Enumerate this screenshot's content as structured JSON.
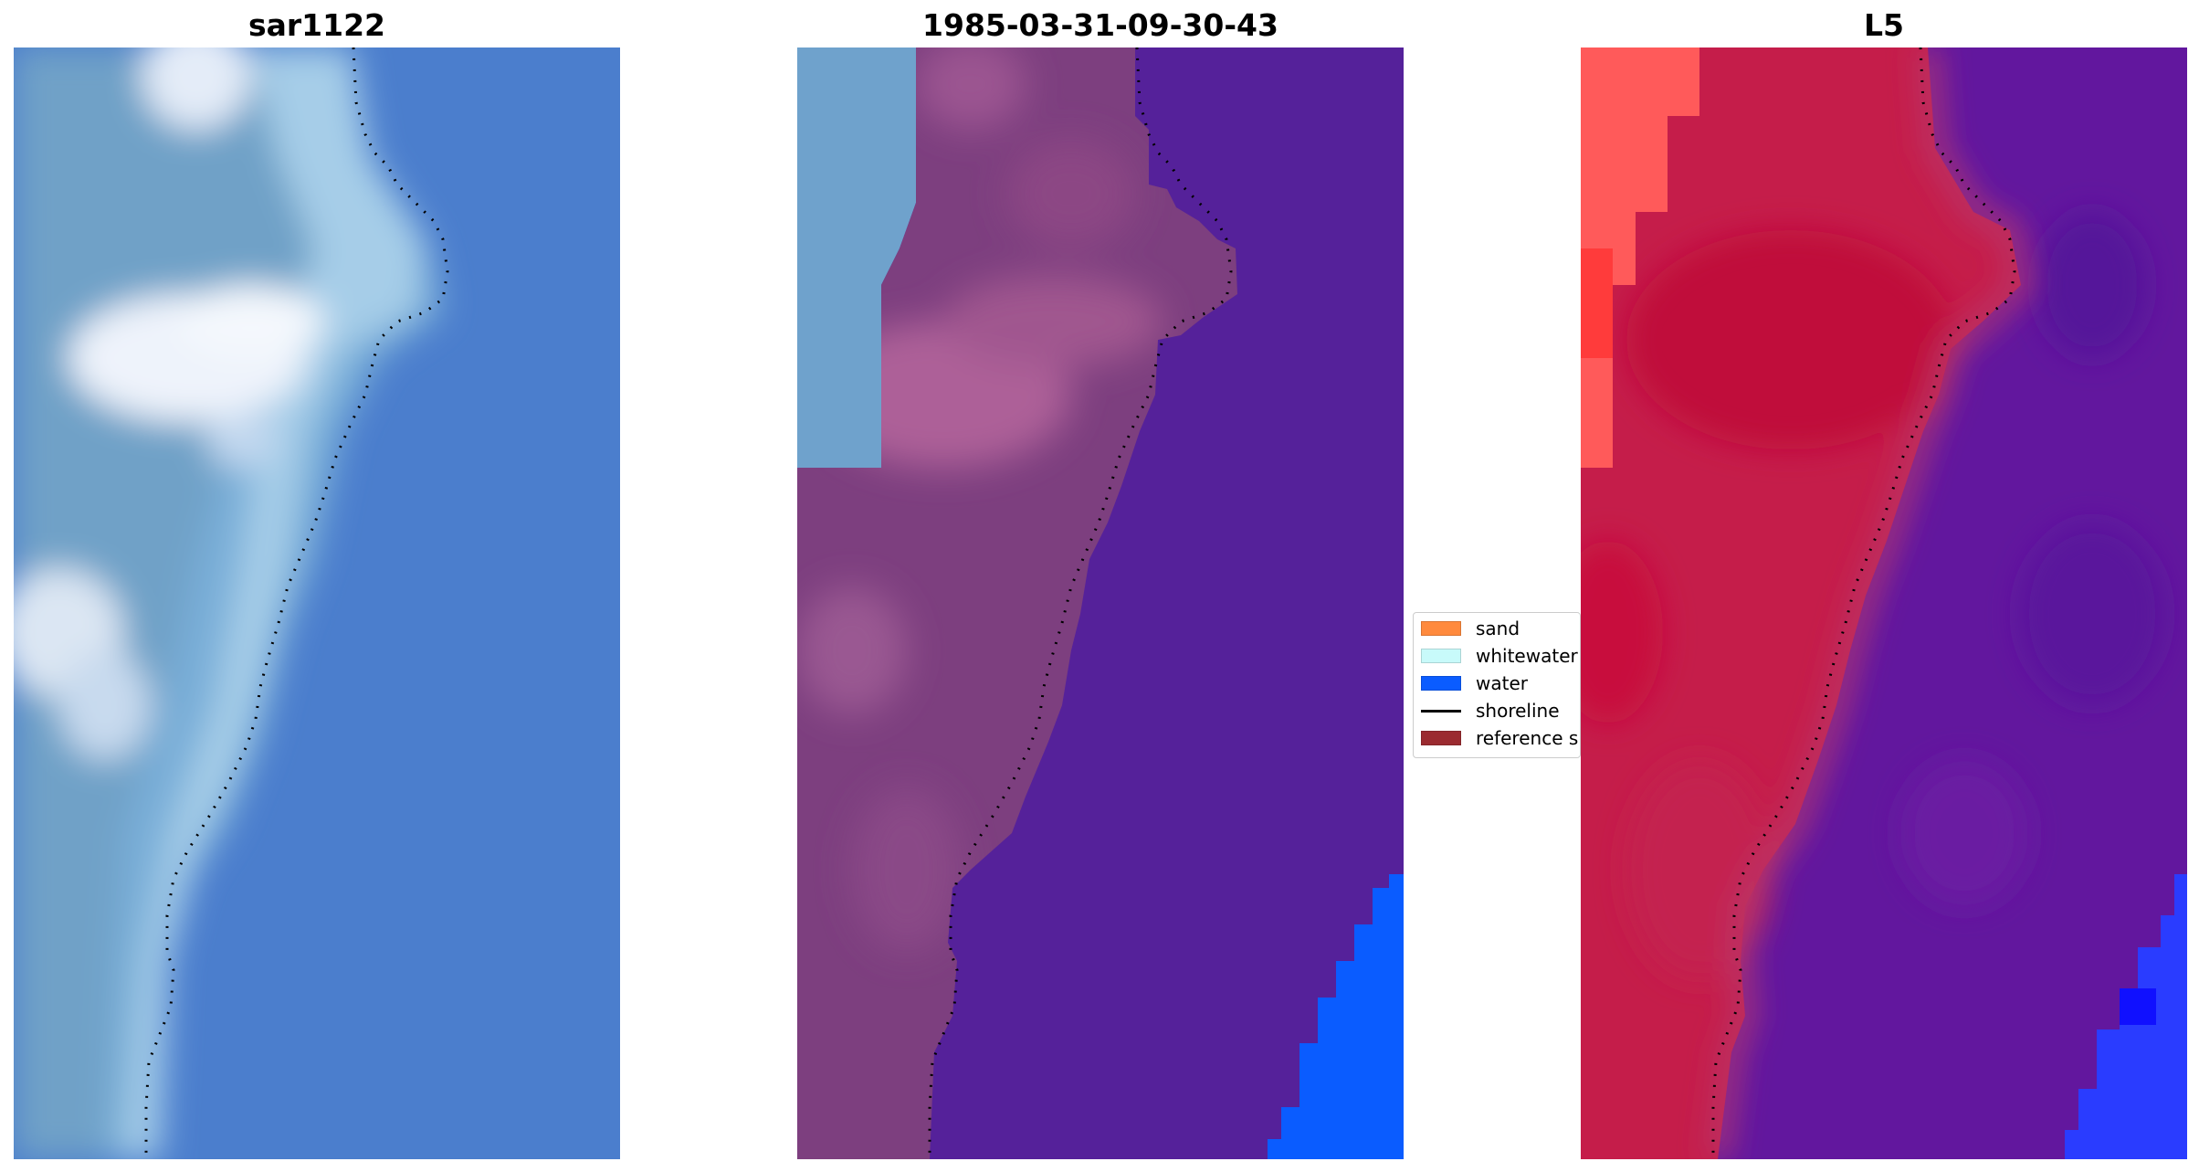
{
  "figure": {
    "titles": [
      "sar1122",
      "1985-03-31-09-30-43",
      "L5"
    ]
  },
  "legend": {
    "items": [
      {
        "label": "sand",
        "kind": "patch",
        "color": "#ff8a3d"
      },
      {
        "label": "whitewater",
        "kind": "patch",
        "color": "#c8fafa"
      },
      {
        "label": "water",
        "kind": "patch",
        "color": "#0a5cff"
      },
      {
        "label": "shoreline",
        "kind": "line",
        "color": "#000000"
      },
      {
        "label": "reference shoreline buffer",
        "kind": "patch",
        "color": "#9b2b30"
      }
    ]
  },
  "colors": {
    "rgb_water": "#4a7fcf",
    "rgb_beach": "#7fb0d6",
    "rgb_whitewater": "#eef3fb",
    "classified_sand": "#7d3f7f",
    "classified_sand_light": "#a35b95",
    "classified_water": "#55219a",
    "classified_bright_water": "#0a5cff",
    "classified_rgb_left": "#6fa2cc",
    "index_red": "#c0143c",
    "index_salmon": "#ff5a5a",
    "index_purple": "#62179e",
    "index_blue": "#1a3cff",
    "shoreline": "#000000"
  }
}
